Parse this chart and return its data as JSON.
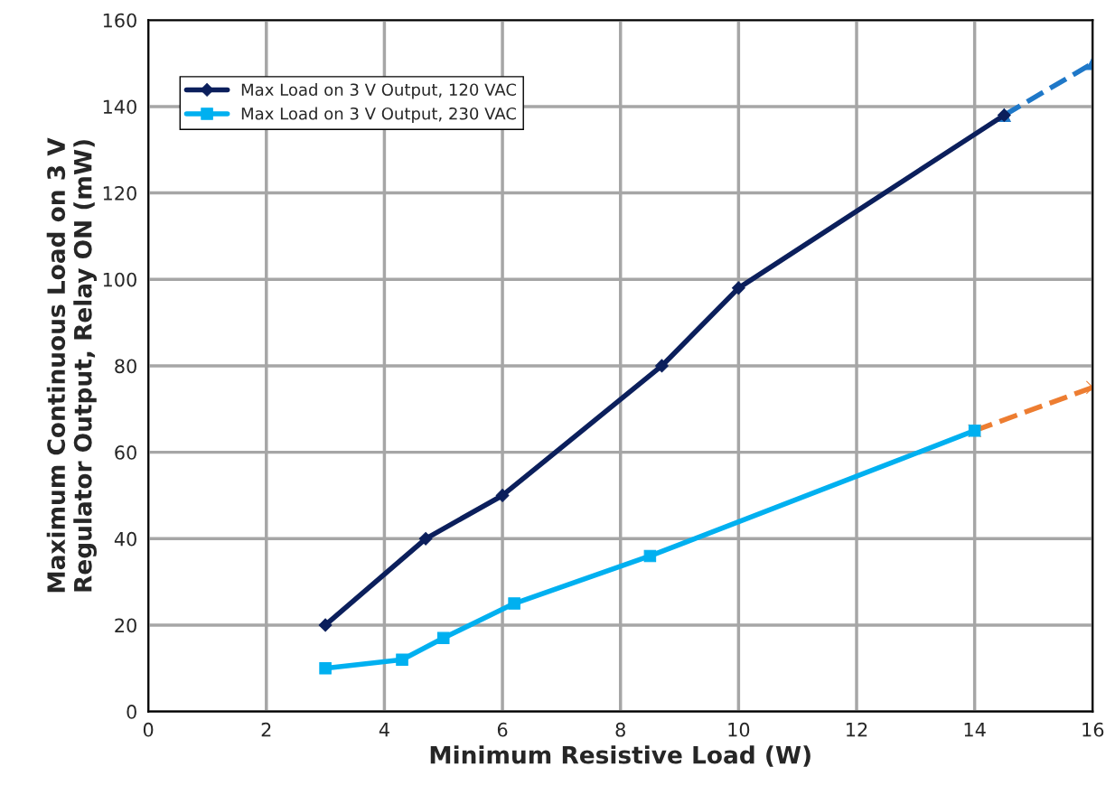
{
  "chart_data": {
    "type": "line",
    "xlabel": "Minimum Resistive Load (W)",
    "ylabel": "Maximum Continuous Load on 3 V\nRegulator Output, Relay ON (mW)",
    "series": [
      {
        "name": "Max Load on 3 V Output, 120 VAC",
        "color": "#0b1f5c",
        "marker": "diamond",
        "line_style": "solid",
        "x": [
          3,
          4.7,
          6,
          8.7,
          10,
          14.5
        ],
        "values": [
          20,
          40,
          50,
          80,
          98,
          138
        ]
      },
      {
        "name": "Max Load on 3 V Output, 230 VAC",
        "color": "#00b0f0",
        "marker": "square",
        "line_style": "solid",
        "x": [
          3,
          4.3,
          5,
          6.2,
          8.5,
          14
        ],
        "values": [
          10,
          12,
          17,
          25,
          36,
          65
        ]
      },
      {
        "color": "#1f78c8",
        "marker": "triangle",
        "line_style": "dashed",
        "x": [
          14.5,
          16
        ],
        "values": [
          138,
          150
        ]
      },
      {
        "color": "#ed7d31",
        "marker": "cross",
        "line_style": "dashed",
        "x": [
          14,
          16
        ],
        "values": [
          65,
          75
        ]
      }
    ],
    "xlim": [
      0,
      16
    ],
    "xticks": [
      0,
      2,
      4,
      6,
      8,
      10,
      12,
      14,
      16
    ],
    "ylim": [
      0,
      160
    ],
    "yticks": [
      0,
      20,
      40,
      60,
      80,
      100,
      120,
      140,
      160
    ],
    "grid": true,
    "legend": "top left"
  }
}
